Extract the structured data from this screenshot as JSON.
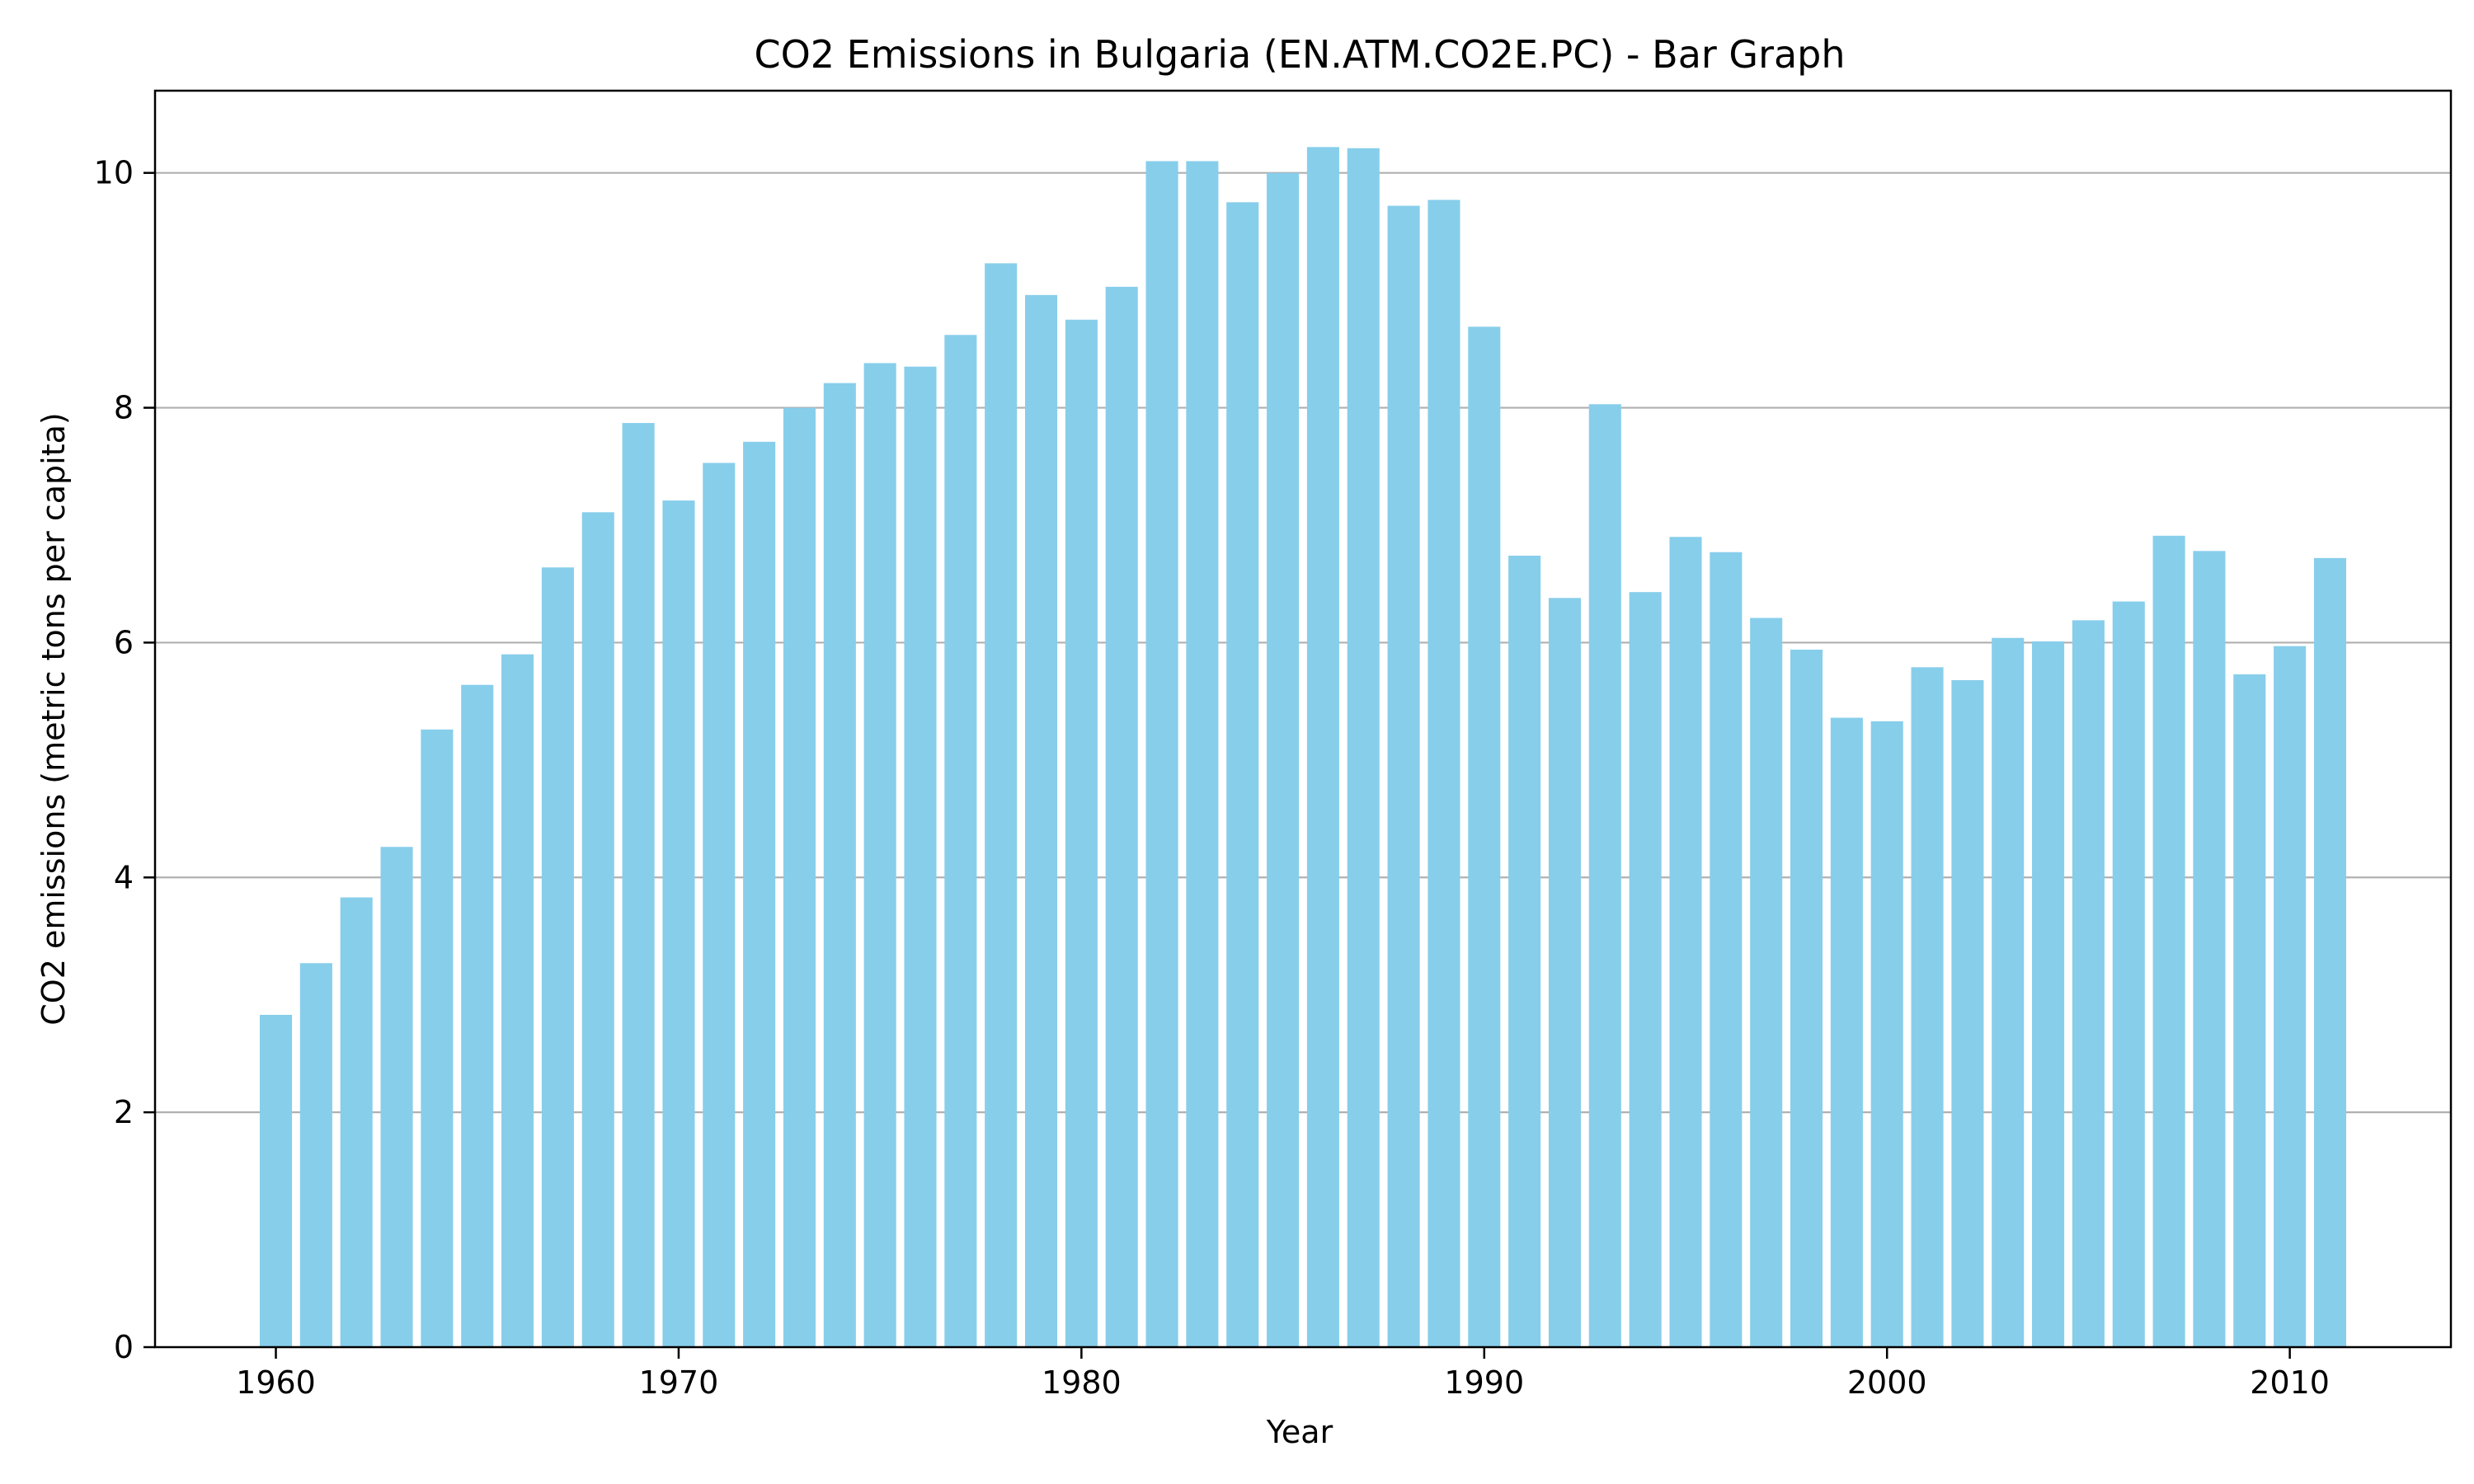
{
  "chart_data": {
    "type": "bar",
    "title": "CO2 Emissions in Bulgaria (EN.ATM.CO2E.PC) - Bar Graph",
    "xlabel": "Year",
    "ylabel": "CO2 emissions (metric tons per capita)",
    "bar_color": "#87ceeb",
    "grid": "y-major",
    "xlim": [
      1957,
      2014
    ],
    "ylim": [
      0,
      10.7
    ],
    "x_ticks": [
      1960,
      1970,
      1980,
      1990,
      2000,
      2010
    ],
    "y_ticks": [
      0,
      2,
      4,
      6,
      8,
      10
    ],
    "x_tick_labels": [
      "1960",
      "1970",
      "1980",
      "1990",
      "2000",
      "2010"
    ],
    "y_tick_labels": [
      "0",
      "2",
      "4",
      "6",
      "8",
      "10"
    ],
    "categories": [
      1960,
      1961,
      1962,
      1963,
      1964,
      1965,
      1966,
      1967,
      1968,
      1969,
      1970,
      1971,
      1972,
      1973,
      1974,
      1975,
      1976,
      1977,
      1978,
      1979,
      1980,
      1981,
      1982,
      1983,
      1984,
      1985,
      1986,
      1987,
      1988,
      1989,
      1990,
      1991,
      1992,
      1993,
      1994,
      1995,
      1996,
      1997,
      1998,
      1999,
      2000,
      2001,
      2002,
      2003,
      2004,
      2005,
      2006,
      2007,
      2008,
      2009,
      2010,
      2011
    ],
    "values": [
      2.83,
      3.27,
      3.83,
      4.26,
      5.26,
      5.64,
      5.9,
      6.64,
      7.11,
      7.87,
      7.21,
      7.53,
      7.71,
      8.0,
      8.21,
      8.38,
      8.35,
      8.62,
      9.23,
      8.96,
      8.75,
      9.03,
      10.1,
      10.1,
      9.75,
      10.0,
      10.22,
      10.21,
      9.72,
      9.77,
      8.69,
      6.74,
      6.38,
      8.03,
      6.43,
      6.9,
      6.77,
      6.21,
      5.94,
      5.36,
      5.33,
      5.79,
      5.68,
      6.04,
      6.01,
      6.19,
      6.35,
      6.91,
      6.78,
      5.73,
      5.97,
      6.72
    ]
  }
}
